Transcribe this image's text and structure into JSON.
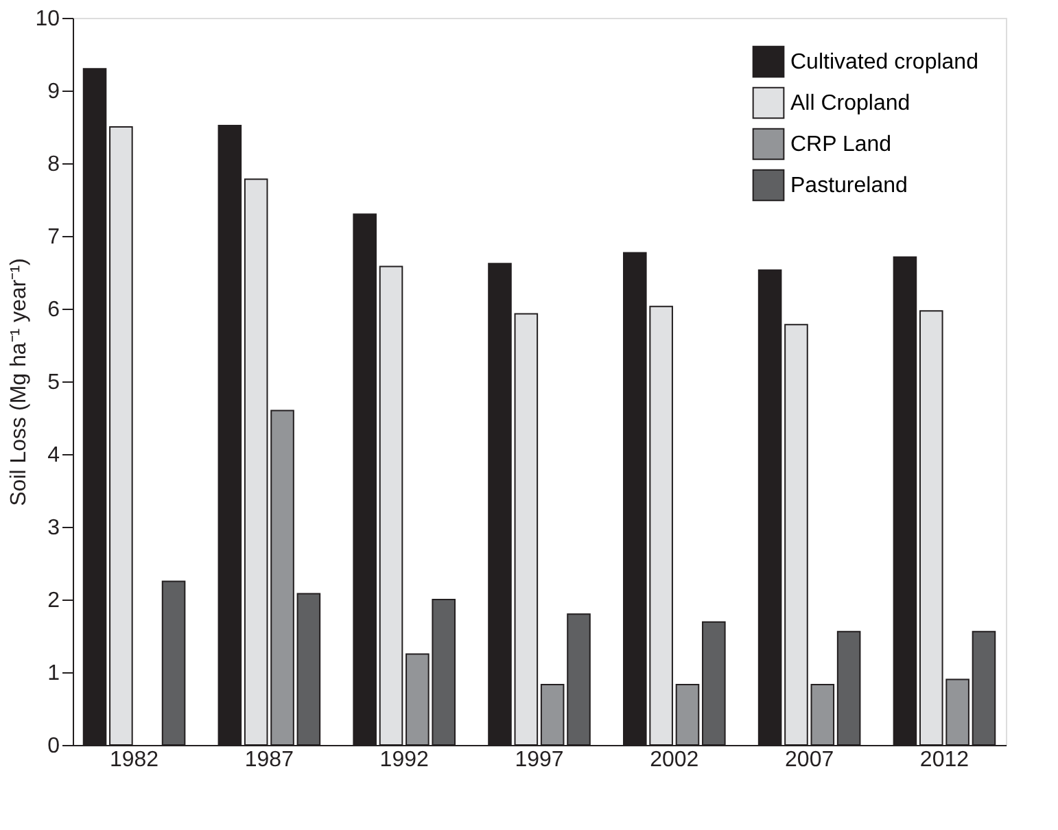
{
  "chart_data": {
    "type": "bar",
    "ylabel": "Soil Loss (Mg ha⁻¹ year⁻¹)",
    "categories": [
      "1982",
      "1987",
      "1992",
      "1997",
      "2002",
      "2007",
      "2012"
    ],
    "series": [
      {
        "name": "Cultivated cropland",
        "color": "#231f20",
        "values": [
          9.3,
          8.52,
          7.3,
          6.62,
          6.77,
          6.53,
          6.71
        ]
      },
      {
        "name": "All Cropland",
        "color": "#e0e1e3",
        "values": [
          8.5,
          7.78,
          6.58,
          5.93,
          6.03,
          5.78,
          5.97
        ]
      },
      {
        "name": "CRP Land",
        "color": "#939598",
        "values": [
          null,
          4.6,
          1.25,
          0.83,
          0.83,
          0.83,
          0.9
        ]
      },
      {
        "name": "Pastureland",
        "color": "#5f6062",
        "values": [
          2.25,
          2.08,
          2.0,
          1.8,
          1.69,
          1.56,
          1.56
        ]
      }
    ],
    "ylim": [
      0,
      10
    ],
    "yticks": [
      0,
      1,
      2,
      3,
      4,
      5,
      6,
      7,
      8,
      9,
      10
    ],
    "grid": false,
    "legend": "top right"
  }
}
